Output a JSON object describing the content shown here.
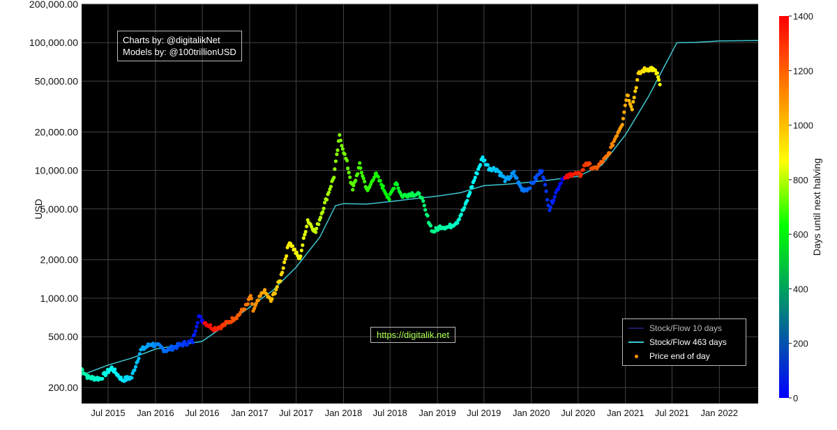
{
  "credits": {
    "line1": "Charts by: @digitalikNet",
    "line2": "Models by: @100trillionUSD"
  },
  "watermark": "https://digitalik.net",
  "legend": {
    "items": [
      {
        "label": "Stock/Flow 10 days",
        "color": "#1c1c66",
        "kind": "line"
      },
      {
        "label": "Stock/Flow 463 days",
        "color": "#3ec8d2",
        "kind": "line"
      },
      {
        "label": "Price end of day",
        "color": "#ff9900",
        "kind": "dot"
      }
    ]
  },
  "colorbar": {
    "title": "Days until next halving",
    "min": 0,
    "max": 1400,
    "ticks": [
      0,
      200,
      400,
      600,
      800,
      1000,
      1200,
      1400
    ],
    "colorscale": [
      "#0000ff",
      "#00ff00",
      "#ffff00",
      "#ff0000"
    ]
  },
  "chart_data": {
    "type": "scatter",
    "ylabel": "USD",
    "xlabel": "",
    "y_scale": "log",
    "ylim": [
      150,
      200000
    ],
    "xlim": [
      "2015-03-20",
      "2022-06-01"
    ],
    "y_ticks": [
      {
        "value": 200,
        "label": "200.00"
      },
      {
        "value": 500,
        "label": "500.00"
      },
      {
        "value": 1000,
        "label": "1,000.00"
      },
      {
        "value": 2000,
        "label": "2,000.00"
      },
      {
        "value": 5000,
        "label": "5,000.00"
      },
      {
        "value": 10000,
        "label": "10,000.00"
      },
      {
        "value": 20000,
        "label": "20,000.00"
      },
      {
        "value": 50000,
        "label": "50,000.00"
      },
      {
        "value": 100000,
        "label": "100,000.00"
      },
      {
        "value": 200000,
        "label": "200,000.00"
      }
    ],
    "x_ticks": [
      {
        "date": "2015-07-01",
        "label": "Jul 2015"
      },
      {
        "date": "2016-01-01",
        "label": "Jan 2016"
      },
      {
        "date": "2016-07-01",
        "label": "Jul 2016"
      },
      {
        "date": "2017-01-01",
        "label": "Jan 2017"
      },
      {
        "date": "2017-07-01",
        "label": "Jul 2017"
      },
      {
        "date": "2018-01-01",
        "label": "Jan 2018"
      },
      {
        "date": "2018-07-01",
        "label": "Jul 2018"
      },
      {
        "date": "2019-01-01",
        "label": "Jan 2019"
      },
      {
        "date": "2019-07-01",
        "label": "Jul 2019"
      },
      {
        "date": "2020-01-01",
        "label": "Jan 2020"
      },
      {
        "date": "2020-07-01",
        "label": "Jul 2020"
      },
      {
        "date": "2021-01-01",
        "label": "Jan 2021"
      },
      {
        "date": "2021-07-01",
        "label": "Jul 2021"
      },
      {
        "date": "2022-01-01",
        "label": "Jan 2022"
      }
    ],
    "grid": true,
    "legend_position": "bottom-right",
    "halvings": [
      "2016-07-09",
      "2020-05-11"
    ],
    "series": [
      {
        "name": "Stock/Flow 463 days",
        "type": "line",
        "color": "#3ec8d2",
        "points": [
          [
            "2015-03-20",
            250
          ],
          [
            "2015-07-01",
            300
          ],
          [
            "2015-10-01",
            340
          ],
          [
            "2016-01-01",
            400
          ],
          [
            "2016-04-01",
            430
          ],
          [
            "2016-07-01",
            460
          ],
          [
            "2016-10-01",
            620
          ],
          [
            "2017-01-01",
            850
          ],
          [
            "2017-04-01",
            1150
          ],
          [
            "2017-07-01",
            1750
          ],
          [
            "2017-10-01",
            3000
          ],
          [
            "2017-12-01",
            5300
          ],
          [
            "2018-01-01",
            5500
          ],
          [
            "2018-04-01",
            5450
          ],
          [
            "2018-07-01",
            5700
          ],
          [
            "2018-10-01",
            6000
          ],
          [
            "2019-01-01",
            6300
          ],
          [
            "2019-04-01",
            6700
          ],
          [
            "2019-07-01",
            7600
          ],
          [
            "2019-10-01",
            7800
          ],
          [
            "2020-01-01",
            8100
          ],
          [
            "2020-04-01",
            8500
          ],
          [
            "2020-07-01",
            9000
          ],
          [
            "2020-10-01",
            11000
          ],
          [
            "2021-01-01",
            19000
          ],
          [
            "2021-04-01",
            38000
          ],
          [
            "2021-06-01",
            65000
          ],
          [
            "2021-07-20",
            100000
          ],
          [
            "2021-10-01",
            100500
          ],
          [
            "2022-01-01",
            103000
          ],
          [
            "2022-06-01",
            104000
          ]
        ]
      },
      {
        "name": "Price end of day",
        "type": "scatter",
        "color": "#ff9900",
        "points": [
          [
            "2015-03-20",
            280
          ],
          [
            "2015-04-15",
            240
          ],
          [
            "2015-06-01",
            235
          ],
          [
            "2015-07-15",
            285
          ],
          [
            "2015-08-25",
            230
          ],
          [
            "2015-10-01",
            240
          ],
          [
            "2015-11-05",
            390
          ],
          [
            "2015-12-15",
            440
          ],
          [
            "2016-01-15",
            420
          ],
          [
            "2016-02-10",
            390
          ],
          [
            "2016-03-15",
            415
          ],
          [
            "2016-04-20",
            440
          ],
          [
            "2016-05-25",
            460
          ],
          [
            "2016-06-17",
            720
          ],
          [
            "2016-07-09",
            650
          ],
          [
            "2016-08-15",
            580
          ],
          [
            "2016-09-20",
            610
          ],
          [
            "2016-10-25",
            680
          ],
          [
            "2016-11-20",
            740
          ],
          [
            "2016-12-25",
            900
          ],
          [
            "2017-01-05",
            1050
          ],
          [
            "2017-01-15",
            800
          ],
          [
            "2017-02-25",
            1150
          ],
          [
            "2017-03-25",
            950
          ],
          [
            "2017-05-01",
            1400
          ],
          [
            "2017-06-05",
            2800
          ],
          [
            "2017-07-15",
            2000
          ],
          [
            "2017-08-15",
            4100
          ],
          [
            "2017-09-15",
            3300
          ],
          [
            "2017-10-20",
            5500
          ],
          [
            "2017-11-25",
            9000
          ],
          [
            "2017-12-17",
            18500
          ],
          [
            "2018-01-15",
            11500
          ],
          [
            "2018-02-06",
            7000
          ],
          [
            "2018-03-05",
            11000
          ],
          [
            "2018-04-05",
            6800
          ],
          [
            "2018-05-05",
            9500
          ],
          [
            "2018-06-28",
            6000
          ],
          [
            "2018-07-25",
            8200
          ],
          [
            "2018-08-15",
            6300
          ],
          [
            "2018-09-25",
            6600
          ],
          [
            "2018-10-30",
            6350
          ],
          [
            "2018-11-20",
            4500
          ],
          [
            "2018-12-15",
            3300
          ],
          [
            "2019-01-15",
            3650
          ],
          [
            "2019-02-15",
            3600
          ],
          [
            "2019-03-20",
            4000
          ],
          [
            "2019-04-20",
            5300
          ],
          [
            "2019-05-20",
            8000
          ],
          [
            "2019-06-26",
            12500
          ],
          [
            "2019-07-20",
            10500
          ],
          [
            "2019-08-20",
            10200
          ],
          [
            "2019-09-25",
            8300
          ],
          [
            "2019-10-26",
            9500
          ],
          [
            "2019-11-25",
            7100
          ],
          [
            "2019-12-20",
            7200
          ],
          [
            "2020-01-20",
            8700
          ],
          [
            "2020-02-12",
            10200
          ],
          [
            "2020-03-12",
            5000
          ],
          [
            "2020-04-10",
            7000
          ],
          [
            "2020-05-05",
            8900
          ],
          [
            "2020-05-11",
            8600
          ],
          [
            "2020-06-10",
            9500
          ],
          [
            "2020-07-10",
            9200
          ],
          [
            "2020-08-01",
            11500
          ],
          [
            "2020-09-05",
            10200
          ],
          [
            "2020-10-25",
            13000
          ],
          [
            "2020-11-25",
            18500
          ],
          [
            "2020-12-20",
            23500
          ],
          [
            "2021-01-08",
            40000
          ],
          [
            "2021-01-27",
            31000
          ],
          [
            "2021-02-20",
            56000
          ],
          [
            "2021-03-13",
            61000
          ],
          [
            "2021-04-13",
            63000
          ],
          [
            "2021-05-05",
            57000
          ],
          [
            "2021-05-15",
            47000
          ]
        ]
      }
    ]
  }
}
